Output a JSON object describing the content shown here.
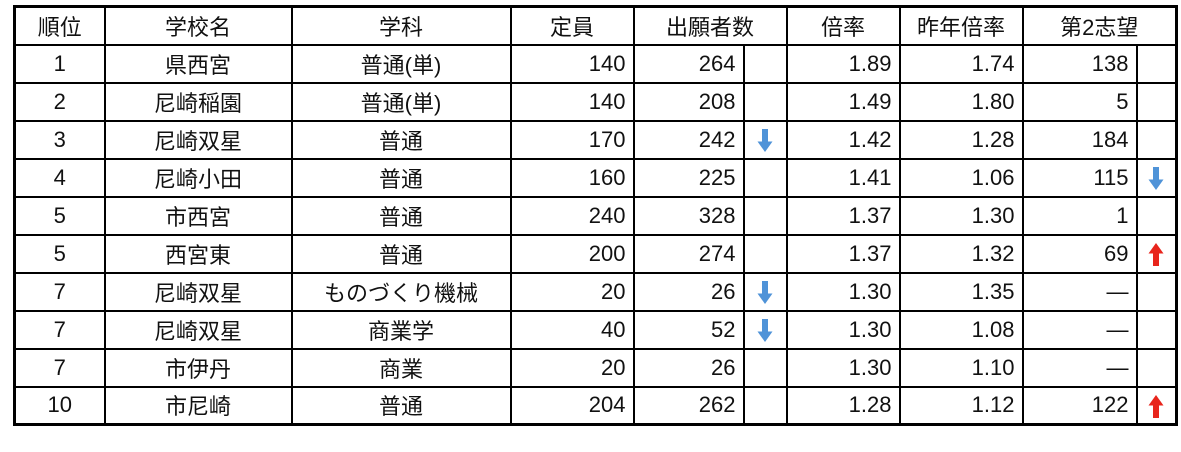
{
  "table_title": "high-school-application-ranking",
  "header": {
    "rank": "順位",
    "school": "学校名",
    "department": "学科",
    "capacity": "定員",
    "applicants": "出願者数",
    "ratio": "倍率",
    "last_year_ratio": "昨年倍率",
    "second_choice": "第2志望"
  },
  "rows": [
    {
      "rank": "1",
      "school": "県西宮",
      "department": "普通(単)",
      "capacity": "140",
      "applicants": "264",
      "applicants_trend": "",
      "ratio": "1.89",
      "last_year_ratio": "1.74",
      "second_choice": "138",
      "second_choice_trend": ""
    },
    {
      "rank": "2",
      "school": "尼崎稲園",
      "department": "普通(単)",
      "capacity": "140",
      "applicants": "208",
      "applicants_trend": "",
      "ratio": "1.49",
      "last_year_ratio": "1.80",
      "second_choice": "5",
      "second_choice_trend": ""
    },
    {
      "rank": "3",
      "school": "尼崎双星",
      "department": "普通",
      "capacity": "170",
      "applicants": "242",
      "applicants_trend": "down",
      "ratio": "1.42",
      "last_year_ratio": "1.28",
      "second_choice": "184",
      "second_choice_trend": ""
    },
    {
      "rank": "4",
      "school": "尼崎小田",
      "department": "普通",
      "capacity": "160",
      "applicants": "225",
      "applicants_trend": "",
      "ratio": "1.41",
      "last_year_ratio": "1.06",
      "second_choice": "115",
      "second_choice_trend": "down"
    },
    {
      "rank": "5",
      "school": "市西宮",
      "department": "普通",
      "capacity": "240",
      "applicants": "328",
      "applicants_trend": "",
      "ratio": "1.37",
      "last_year_ratio": "1.30",
      "second_choice": "1",
      "second_choice_trend": ""
    },
    {
      "rank": "5",
      "school": "西宮東",
      "department": "普通",
      "capacity": "200",
      "applicants": "274",
      "applicants_trend": "",
      "ratio": "1.37",
      "last_year_ratio": "1.32",
      "second_choice": "69",
      "second_choice_trend": "up"
    },
    {
      "rank": "7",
      "school": "尼崎双星",
      "department": "ものづくり機械",
      "capacity": "20",
      "applicants": "26",
      "applicants_trend": "down",
      "ratio": "1.30",
      "last_year_ratio": "1.35",
      "second_choice": "―",
      "second_choice_trend": ""
    },
    {
      "rank": "7",
      "school": "尼崎双星",
      "department": "商業学",
      "capacity": "40",
      "applicants": "52",
      "applicants_trend": "down",
      "ratio": "1.30",
      "last_year_ratio": "1.08",
      "second_choice": "―",
      "second_choice_trend": ""
    },
    {
      "rank": "7",
      "school": "市伊丹",
      "department": "商業",
      "capacity": "20",
      "applicants": "26",
      "applicants_trend": "",
      "ratio": "1.30",
      "last_year_ratio": "1.10",
      "second_choice": "―",
      "second_choice_trend": ""
    },
    {
      "rank": "10",
      "school": "市尼崎",
      "department": "普通",
      "capacity": "204",
      "applicants": "262",
      "applicants_trend": "",
      "ratio": "1.28",
      "last_year_ratio": "1.12",
      "second_choice": "122",
      "second_choice_trend": "up"
    }
  ],
  "colors": {
    "down_arrow": "#4f93d8",
    "up_arrow": "#e8251c",
    "border": "#000000",
    "text": "#111111",
    "background": "#ffffff"
  }
}
